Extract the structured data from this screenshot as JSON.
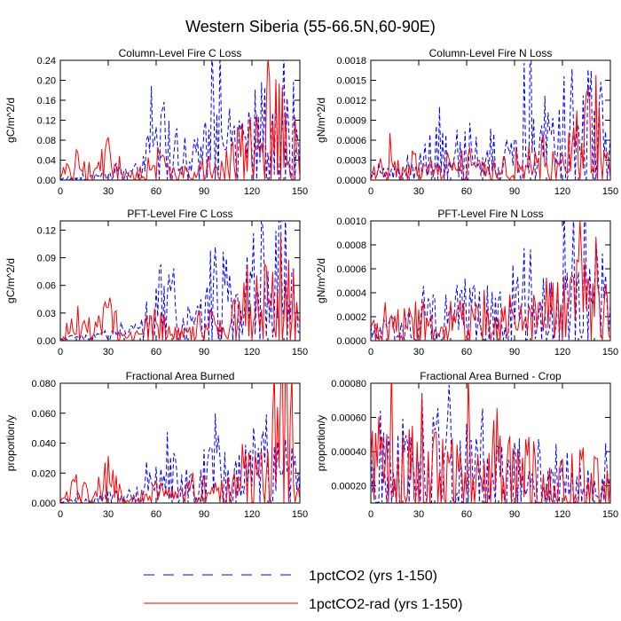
{
  "title": "Western Siberia (55-66.5N,60-90E)",
  "series_styles": [
    {
      "name": "1pctCO2 (yrs 1-150)",
      "color": "#0000ff",
      "dash": "dashed"
    },
    {
      "name": "1pctCO2-rad (yrs 1-150)",
      "color": "#ff0000",
      "dash": "solid"
    }
  ],
  "chart_data": [
    {
      "type": "line",
      "title": "Column-Level Fire C Loss",
      "ylabel": "gC/m^2/d",
      "xlim": [
        0,
        150
      ],
      "ylim": [
        0,
        0.24
      ],
      "xticks": [
        "0",
        "30",
        "60",
        "90",
        "120",
        "150"
      ],
      "yticks": [
        "0.00",
        "0.04",
        "0.08",
        "0.12",
        "0.16",
        "0.20",
        "0.24"
      ],
      "x": [
        0,
        10,
        20,
        30,
        40,
        50,
        60,
        70,
        80,
        90,
        100,
        110,
        120,
        130,
        140,
        150
      ],
      "series": [
        {
          "name": "1pctCO2 (yrs 1-150)",
          "values": [
            0.005,
            0.012,
            0.008,
            0.018,
            0.02,
            0.03,
            0.11,
            0.12,
            0.05,
            0.08,
            0.215,
            0.07,
            0.19,
            0.17,
            0.2,
            0.06
          ]
        },
        {
          "name": "1pctCO2-rad (yrs 1-150)",
          "values": [
            0.003,
            0.06,
            0.02,
            0.07,
            0.01,
            0.02,
            0.06,
            0.02,
            0.03,
            0.05,
            0.04,
            0.08,
            0.09,
            0.13,
            0.21,
            0.04
          ]
        }
      ]
    },
    {
      "type": "line",
      "title": "Column-Level Fire N Loss",
      "ylabel": "gN/m^2/d",
      "xlim": [
        0,
        150
      ],
      "ylim": [
        0,
        0.0018
      ],
      "xticks": [
        "0",
        "30",
        "60",
        "90",
        "120",
        "150"
      ],
      "yticks": [
        "0.0000",
        "0.0003",
        "0.0006",
        "0.0009",
        "0.0012",
        "0.0015",
        "0.0018"
      ],
      "x": [
        0,
        10,
        20,
        30,
        40,
        50,
        60,
        70,
        80,
        90,
        100,
        110,
        120,
        130,
        140,
        150
      ],
      "series": [
        {
          "name": "1pctCO2 (yrs 1-150)",
          "values": [
            0.0001,
            0.00015,
            0.0002,
            0.0002,
            0.00075,
            0.00035,
            0.0008,
            0.0009,
            0.0004,
            0.0005,
            0.0014,
            0.0006,
            0.0013,
            0.001,
            0.0015,
            0.0005
          ]
        },
        {
          "name": "1pctCO2-rad (yrs 1-150)",
          "values": [
            0.0001,
            0.0004,
            0.0002,
            0.0005,
            0.00015,
            0.00035,
            0.0004,
            0.00025,
            0.0003,
            0.0005,
            0.0004,
            0.0006,
            0.0007,
            0.0009,
            0.0012,
            0.0003
          ]
        }
      ]
    },
    {
      "type": "line",
      "title": "PFT-Level Fire C Loss",
      "ylabel": "gC/m^2/d",
      "xlim": [
        0,
        150
      ],
      "ylim": [
        0,
        0.13
      ],
      "xticks": [
        "0",
        "30",
        "60",
        "90",
        "120",
        "150"
      ],
      "yticks": [
        "0.00",
        "0.03",
        "0.06",
        "0.09",
        "0.12"
      ],
      "x": [
        0,
        10,
        20,
        30,
        40,
        50,
        60,
        70,
        80,
        90,
        100,
        110,
        120,
        130,
        140,
        150
      ],
      "series": [
        {
          "name": "1pctCO2 (yrs 1-150)",
          "values": [
            0.003,
            0.006,
            0.005,
            0.01,
            0.01,
            0.015,
            0.06,
            0.065,
            0.03,
            0.045,
            0.118,
            0.04,
            0.1,
            0.09,
            0.12,
            0.03
          ]
        },
        {
          "name": "1pctCO2-rad (yrs 1-150)",
          "values": [
            0.002,
            0.035,
            0.01,
            0.04,
            0.006,
            0.01,
            0.03,
            0.012,
            0.015,
            0.03,
            0.025,
            0.045,
            0.05,
            0.07,
            0.11,
            0.02
          ]
        }
      ]
    },
    {
      "type": "line",
      "title": "PFT-Level Fire N Loss",
      "ylabel": "gN/m^2/d",
      "xlim": [
        0,
        150
      ],
      "ylim": [
        0,
        0.001
      ],
      "xticks": [
        "0",
        "30",
        "60",
        "90",
        "120",
        "150"
      ],
      "yticks": [
        "0.0000",
        "0.0002",
        "0.0004",
        "0.0006",
        "0.0008",
        "0.0010"
      ],
      "x": [
        0,
        10,
        20,
        30,
        40,
        50,
        60,
        70,
        80,
        90,
        100,
        110,
        120,
        130,
        140,
        150
      ],
      "series": [
        {
          "name": "1pctCO2 (yrs 1-150)",
          "values": [
            0.00012,
            0.00015,
            0.00018,
            0.0002,
            0.0004,
            0.00025,
            0.0005,
            0.00055,
            0.0003,
            0.00035,
            0.00085,
            0.0004,
            0.0008,
            0.0006,
            0.0009,
            0.0003
          ]
        },
        {
          "name": "1pctCO2-rad (yrs 1-150)",
          "values": [
            0.0001,
            0.0003,
            0.00015,
            0.00035,
            0.00012,
            0.00025,
            0.00028,
            0.0002,
            0.00022,
            0.00035,
            0.0003,
            0.0004,
            0.00045,
            0.0006,
            0.0007,
            0.0002
          ]
        }
      ]
    },
    {
      "type": "line",
      "title": "Fractional Area Burned",
      "ylabel": "proportion/y",
      "xlim": [
        0,
        150
      ],
      "ylim": [
        0,
        0.08
      ],
      "xticks": [
        "0",
        "30",
        "60",
        "90",
        "120",
        "150"
      ],
      "yticks": [
        "0.000",
        "0.020",
        "0.040",
        "0.060",
        "0.080"
      ],
      "x": [
        0,
        10,
        20,
        30,
        40,
        50,
        60,
        70,
        80,
        90,
        100,
        110,
        120,
        130,
        140,
        150
      ],
      "series": [
        {
          "name": "1pctCO2 (yrs 1-150)",
          "values": [
            0.002,
            0.004,
            0.003,
            0.006,
            0.006,
            0.009,
            0.02,
            0.03,
            0.016,
            0.025,
            0.035,
            0.025,
            0.035,
            0.038,
            0.045,
            0.015
          ]
        },
        {
          "name": "1pctCO2-rad (yrs 1-150)",
          "values": [
            0.001,
            0.018,
            0.005,
            0.025,
            0.003,
            0.006,
            0.012,
            0.008,
            0.01,
            0.015,
            0.012,
            0.02,
            0.025,
            0.03,
            0.077,
            0.01
          ]
        }
      ]
    },
    {
      "type": "line",
      "title": "Fractional Area Burned - Crop",
      "ylabel": "proportion/y",
      "xlim": [
        0,
        150
      ],
      "ylim": [
        0.0001,
        0.0008
      ],
      "xticks": [
        "0",
        "30",
        "60",
        "90",
        "120",
        "150"
      ],
      "yticks": [
        "0.00020",
        "0.00040",
        "0.00060",
        "0.00080"
      ],
      "x": [
        0,
        10,
        20,
        30,
        40,
        50,
        60,
        70,
        80,
        90,
        100,
        110,
        120,
        130,
        140,
        150
      ],
      "series": [
        {
          "name": "1pctCO2 (yrs 1-150)",
          "values": [
            0.0004,
            0.00055,
            0.00045,
            0.0006,
            0.0005,
            0.00045,
            0.00042,
            0.0004,
            0.00045,
            0.00038,
            0.00035,
            0.0004,
            0.00032,
            0.0003,
            0.00025,
            0.0002
          ]
        },
        {
          "name": "1pctCO2-rad (yrs 1-150)",
          "values": [
            0.0005,
            0.0004,
            0.0005,
            0.00045,
            0.0004,
            0.00035,
            0.00045,
            0.0004,
            0.0005,
            0.00035,
            0.0004,
            0.0003,
            0.0003,
            0.00035,
            0.0003,
            0.00025
          ]
        }
      ]
    }
  ]
}
